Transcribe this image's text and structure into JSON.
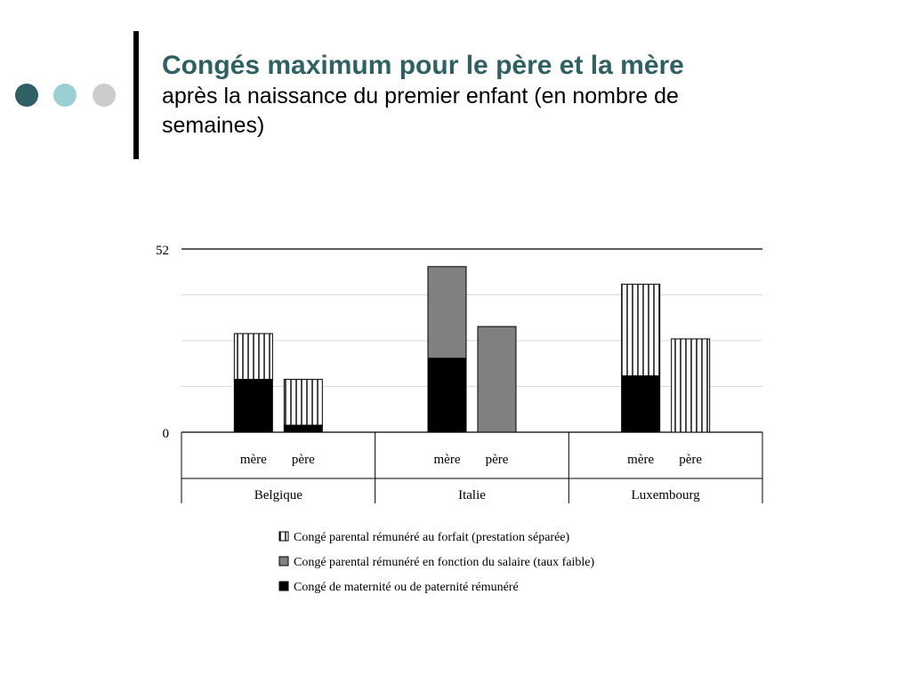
{
  "slide": {
    "title": "Congés maximum pour le père et la mère",
    "subtitle": "après la naissance du premier enfant (en nombre de semaines)"
  },
  "chart_data": {
    "type": "bar",
    "stacked": true,
    "groups": [
      {
        "name": "Belgique",
        "categories": [
          "mère",
          "père"
        ]
      },
      {
        "name": "Italie",
        "categories": [
          "mère",
          "père"
        ]
      },
      {
        "name": "Luxembourg",
        "categories": [
          "mère",
          "père"
        ]
      }
    ],
    "series": [
      {
        "name": "Congé de maternité ou de paternité rémunéré",
        "pattern": "solid-black",
        "values": [
          15,
          2,
          21,
          0,
          16,
          0
        ]
      },
      {
        "name": "Congé parental rémunéré en fonction du salaire (taux faible)",
        "pattern": "solid-gray",
        "values": [
          0,
          0,
          26,
          30,
          0,
          0
        ]
      },
      {
        "name": "Congé parental rémunéré au forfait (prestation séparée)",
        "pattern": "vertical-stripes",
        "values": [
          13,
          13,
          0,
          0,
          26,
          26.5
        ]
      }
    ],
    "legend_order": [
      "Congé parental rémunéré au forfait (prestation séparée)",
      "Congé parental rémunéré en fonction du salaire (taux faible)",
      "Congé de maternité ou de paternité rémunéré"
    ],
    "legend_position": "bottom",
    "ylim": [
      0,
      52
    ],
    "y_ticks": [
      "0",
      "52"
    ],
    "grid": true,
    "colors": {
      "solid-black": "#000000",
      "solid-gray": "#808080",
      "stripe": "#000000",
      "grid": "#d9d9d9"
    }
  }
}
